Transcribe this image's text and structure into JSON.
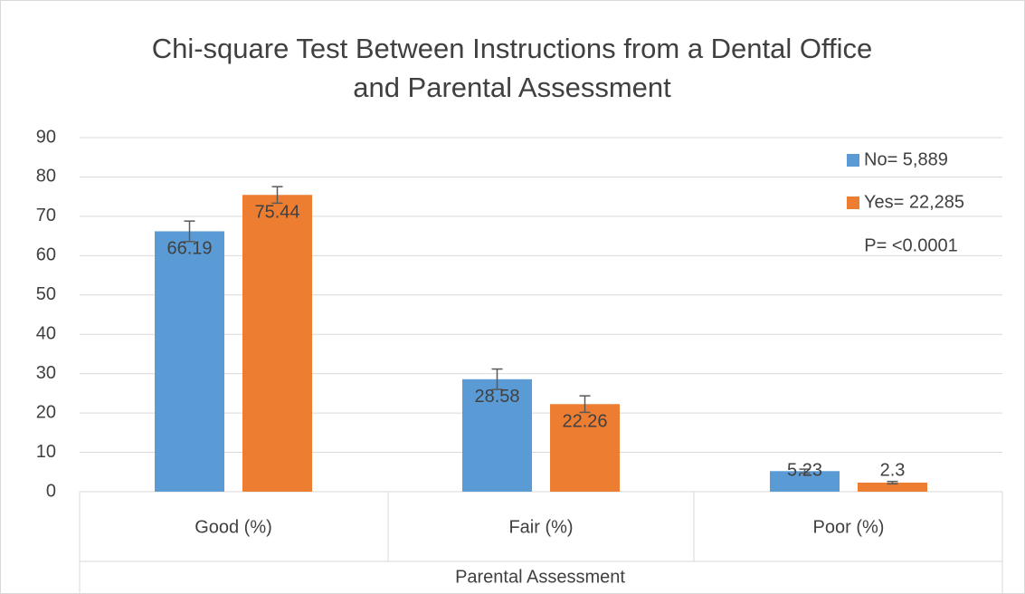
{
  "chart_data": {
    "type": "bar",
    "title": [
      "Chi-square Test Between Instructions from a Dental Office",
      "and Parental Assessment"
    ],
    "x_label": "Parental Assessment",
    "annotation": "P= <0.0001",
    "categories": [
      "Good (%)",
      "Fair (%)",
      "Poor (%)"
    ],
    "series": [
      {
        "name": "No= 5,889",
        "color": "#5b9bd5",
        "values": [
          66.19,
          28.58,
          5.23
        ],
        "errors": [
          2.6,
          2.6,
          0.5
        ]
      },
      {
        "name": "Yes= 22,285",
        "color": "#ed7d31",
        "values": [
          75.44,
          22.26,
          2.3
        ],
        "errors": [
          2.1,
          2.1,
          0.3
        ]
      }
    ],
    "ylim": [
      0,
      90
    ],
    "yticks": [
      0,
      10,
      20,
      30,
      40,
      50,
      60,
      70,
      80,
      90
    ],
    "grid": true,
    "legend": "top-right"
  }
}
